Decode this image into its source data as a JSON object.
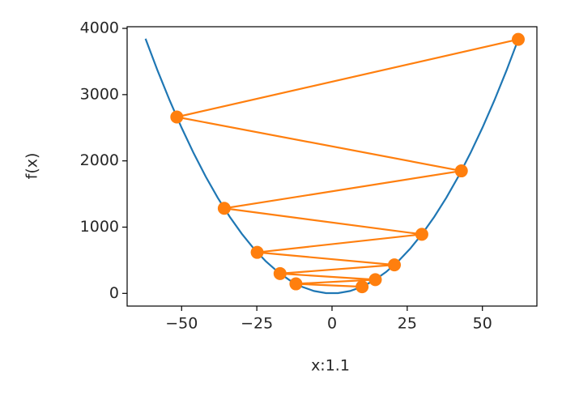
{
  "chart_data": {
    "type": "line",
    "xlabel": "x:1.1",
    "ylabel": "f(x)",
    "xlim": [
      -68.11,
      68.11
    ],
    "ylim": [
      -191.7,
      4025
    ],
    "xticks": [
      {
        "value": -50,
        "label": "−50"
      },
      {
        "value": -25,
        "label": "−25"
      },
      0,
      25,
      50
    ],
    "yticks": [
      0,
      1000,
      2000,
      3000,
      4000
    ],
    "grid": false,
    "series": [
      {
        "color": "#1f77b4",
        "marker": "none",
        "x": [
          -62,
          -58,
          -54,
          -50,
          -46,
          -42,
          -38,
          -34,
          -30,
          -26,
          -22,
          -18,
          -14,
          -10,
          -6,
          -2,
          2,
          6,
          10,
          14,
          18,
          22,
          26,
          30,
          34,
          38,
          42,
          46,
          50,
          54,
          58,
          62
        ],
        "values": [
          3844,
          3364,
          2916,
          2500,
          2116,
          1764,
          1444,
          1156,
          900,
          676,
          484,
          324,
          196,
          100,
          36,
          4,
          4,
          36,
          100,
          196,
          324,
          484,
          676,
          900,
          1156,
          1444,
          1764,
          2116,
          2500,
          2916,
          3364,
          3844
        ]
      },
      {
        "color": "#ff7f0e",
        "marker": "circle",
        "x": [
          10,
          -12,
          14.4,
          -17.28,
          20.736,
          -24.883,
          29.86,
          -35.832,
          42.998,
          -51.598,
          61.917
        ],
        "values": [
          100,
          144,
          207.36,
          298.6,
          429.98,
          619.17,
          891.61,
          1283.92,
          1848.85,
          2662.33,
          3833.76
        ]
      }
    ]
  }
}
